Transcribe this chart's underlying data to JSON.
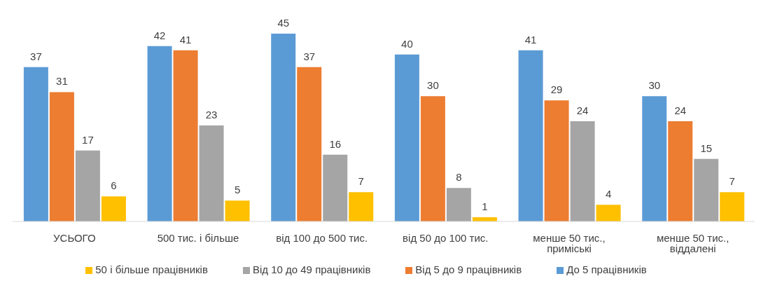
{
  "chart_data": {
    "type": "bar",
    "categories": [
      "УСЬОГО",
      "500 тис. і більше",
      "від 100 до 500 тис.",
      "від 50 до 100 тис.",
      "менше 50 тис., приміські",
      "менше 50 тис., віддалені"
    ],
    "series": [
      {
        "name": "До 5 працівників",
        "color": "#5b9bd5",
        "values": [
          37,
          42,
          45,
          40,
          41,
          30
        ]
      },
      {
        "name": "Від 5 до 9 працівників",
        "color": "#ed7d31",
        "values": [
          31,
          41,
          37,
          30,
          29,
          24
        ]
      },
      {
        "name": "Від 10 до 49 працівників",
        "color": "#a5a5a5",
        "values": [
          17,
          23,
          16,
          8,
          24,
          15
        ]
      },
      {
        "name": "50 і більше працівників",
        "color": "#ffc000",
        "values": [
          6,
          5,
          7,
          1,
          4,
          7
        ]
      }
    ],
    "data_labels": true,
    "grid": false,
    "legend": "bottom"
  }
}
